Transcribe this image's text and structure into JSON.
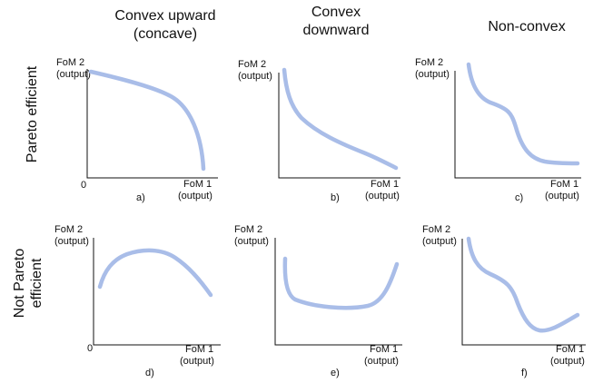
{
  "figure": {
    "column_titles": [
      {
        "line1": "Convex upward",
        "line2": "(concave)"
      },
      {
        "line1": "Convex",
        "line2": "downward"
      },
      {
        "line1": "Non-convex",
        "line2": ""
      }
    ],
    "row_titles": [
      {
        "line1": "Pareto efficient",
        "line2": ""
      },
      {
        "line1": "Not Pareto",
        "line2": "efficient"
      }
    ],
    "y_axis_label": {
      "line1": "FoM 2",
      "line2": "(output)"
    },
    "x_axis_label": {
      "line1": "FoM 1",
      "line2": "(output)"
    },
    "origin_label": "0",
    "curve_color": "#a9bde8",
    "panels": [
      {
        "id": "a",
        "label": "a)",
        "shape": "concave"
      },
      {
        "id": "b",
        "label": "b)",
        "shape": "convex-downward"
      },
      {
        "id": "c",
        "label": "c)",
        "shape": "non-convex"
      },
      {
        "id": "d",
        "label": "d)",
        "shape": "hump"
      },
      {
        "id": "e",
        "label": "e)",
        "shape": "u-shape"
      },
      {
        "id": "f",
        "label": "f)",
        "shape": "non-convex-rising"
      }
    ]
  }
}
